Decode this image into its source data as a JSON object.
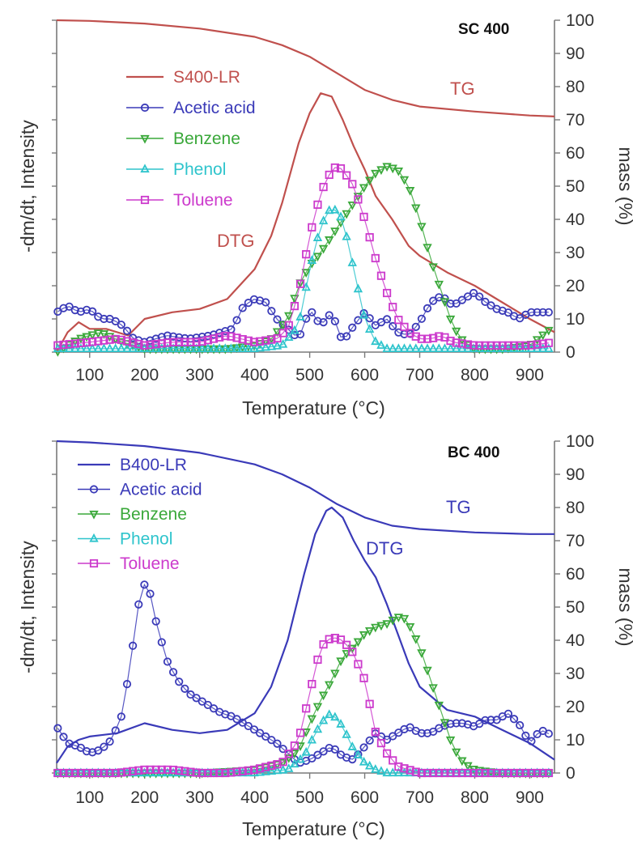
{
  "chart_data": [
    {
      "type": "line",
      "panel_label": "SC 400",
      "xlabel": "Temperature (°C)",
      "ylabel_left": "-dm/dt, Intensity",
      "ylabel_right": "mass (%)",
      "xlim": [
        40,
        945
      ],
      "ylim": [
        0,
        100
      ],
      "x_ticks": [
        100,
        200,
        300,
        400,
        500,
        600,
        700,
        800,
        900
      ],
      "y_ticks": [
        0,
        10,
        20,
        30,
        40,
        50,
        60,
        70,
        80,
        90,
        100
      ],
      "grid": false,
      "legend_position": "top-left",
      "annotations": {
        "tg": "TG",
        "dtg": "DTG"
      },
      "series": [
        {
          "name": "S400-LR",
          "kind": "TG",
          "color": "#c0504d",
          "marker": "none",
          "x": [
            40,
            100,
            200,
            300,
            400,
            450,
            500,
            550,
            600,
            650,
            700,
            800,
            900,
            945
          ],
          "y": [
            100,
            99.8,
            99,
            97.5,
            95,
            92.5,
            89,
            84,
            79,
            76,
            74,
            72.5,
            71.3,
            71
          ]
        },
        {
          "name": "S400-LR",
          "kind": "DTG",
          "color": "#c0504d",
          "marker": "none",
          "x": [
            40,
            60,
            80,
            100,
            130,
            170,
            200,
            250,
            300,
            350,
            400,
            430,
            450,
            480,
            500,
            520,
            540,
            560,
            580,
            600,
            620,
            650,
            680,
            700,
            750,
            800,
            850,
            900,
            945
          ],
          "y": [
            0,
            6,
            9,
            7,
            7,
            5,
            10,
            12,
            13,
            16,
            25,
            35,
            45,
            63,
            72,
            78,
            77,
            70,
            62,
            55,
            47,
            40,
            32,
            29,
            24,
            20,
            15,
            10,
            6
          ]
        },
        {
          "name": "Acetic acid",
          "color": "#3a3ab8",
          "marker": "circle",
          "x": [
            40,
            60,
            80,
            100,
            120,
            140,
            160,
            180,
            200,
            240,
            280,
            320,
            360,
            380,
            400,
            420,
            440,
            460,
            480,
            500,
            520,
            540,
            560,
            580,
            600,
            620,
            640,
            660,
            680,
            700,
            720,
            740,
            760,
            780,
            800,
            820,
            840,
            860,
            880,
            900,
            920,
            945
          ],
          "y": [
            12,
            14,
            12,
            13,
            10,
            10,
            8,
            4,
            3,
            5,
            4,
            5,
            7,
            14,
            16,
            15,
            10,
            7,
            4,
            13,
            8,
            12,
            3,
            8,
            12,
            8,
            10,
            6,
            5,
            9,
            15,
            17,
            14,
            16,
            18,
            15,
            13,
            12,
            10,
            12,
            12,
            12
          ]
        },
        {
          "name": "Benzene",
          "color": "#3aa83a",
          "marker": "triangle-down",
          "x": [
            40,
            80,
            120,
            160,
            200,
            250,
            300,
            350,
            400,
            430,
            460,
            480,
            500,
            520,
            540,
            560,
            580,
            600,
            620,
            640,
            660,
            680,
            700,
            720,
            740,
            760,
            780,
            800,
            850,
            900,
            945
          ],
          "y": [
            0,
            4,
            6,
            3,
            1,
            1,
            1,
            1,
            2,
            4,
            10,
            20,
            26,
            30,
            35,
            40,
            45,
            50,
            54,
            56,
            55,
            50,
            40,
            28,
            18,
            8,
            3,
            1,
            1,
            2,
            8
          ]
        },
        {
          "name": "Phenol",
          "color": "#2ec4cc",
          "marker": "triangle-up",
          "x": [
            40,
            100,
            200,
            300,
            400,
            450,
            480,
            500,
            520,
            540,
            560,
            580,
            600,
            620,
            640,
            660,
            700,
            800,
            900,
            945
          ],
          "y": [
            1,
            1,
            1,
            1,
            1,
            2,
            8,
            25,
            38,
            44,
            40,
            25,
            10,
            3,
            1,
            1,
            1,
            1,
            1,
            1
          ]
        },
        {
          "name": "Toluene",
          "color": "#cc3acc",
          "marker": "square",
          "x": [
            40,
            100,
            150,
            200,
            250,
            300,
            350,
            400,
            440,
            460,
            480,
            500,
            520,
            540,
            550,
            560,
            580,
            600,
            620,
            640,
            660,
            680,
            700,
            720,
            740,
            760,
            800,
            850,
            900,
            945
          ],
          "y": [
            2,
            3,
            4,
            2,
            3,
            3,
            5,
            3,
            4,
            7,
            18,
            35,
            48,
            55,
            56,
            55,
            50,
            40,
            28,
            18,
            10,
            6,
            4,
            4,
            5,
            3,
            2,
            2,
            2,
            3
          ]
        }
      ]
    },
    {
      "type": "line",
      "panel_label": "BC 400",
      "xlabel": "Temperature (°C)",
      "ylabel_left": "-dm/dt, Intensity",
      "ylabel_right": "mass (%)",
      "xlim": [
        40,
        945
      ],
      "ylim": [
        0,
        100
      ],
      "x_ticks": [
        100,
        200,
        300,
        400,
        500,
        600,
        700,
        800,
        900
      ],
      "y_ticks": [
        0,
        10,
        20,
        30,
        40,
        50,
        60,
        70,
        80,
        90,
        100
      ],
      "grid": false,
      "legend_position": "top-left",
      "annotations": {
        "tg": "TG",
        "dtg": "DTG"
      },
      "series": [
        {
          "name": "B400-LR",
          "kind": "TG",
          "color": "#3a3ab8",
          "marker": "none",
          "x": [
            40,
            100,
            200,
            300,
            400,
            450,
            500,
            550,
            600,
            650,
            700,
            800,
            900,
            945
          ],
          "y": [
            100,
            99.6,
            98.5,
            96.5,
            93,
            90,
            86,
            81,
            77,
            74.5,
            73.5,
            72.5,
            72,
            72
          ]
        },
        {
          "name": "B400-LR",
          "kind": "DTG",
          "color": "#3a3ab8",
          "marker": "none",
          "x": [
            40,
            60,
            80,
            100,
            150,
            200,
            250,
            300,
            350,
            400,
            430,
            460,
            490,
            510,
            530,
            540,
            560,
            580,
            600,
            620,
            640,
            660,
            680,
            700,
            750,
            800,
            850,
            900,
            945
          ],
          "y": [
            3,
            8,
            10,
            11,
            12,
            15,
            13,
            12,
            13,
            18,
            26,
            40,
            60,
            72,
            79,
            80,
            77,
            70,
            64,
            59,
            51,
            42,
            33,
            26,
            19,
            17,
            13,
            9,
            4
          ]
        },
        {
          "name": "Acetic acid",
          "color": "#3a3ab8",
          "marker": "circle",
          "x": [
            40,
            60,
            80,
            100,
            120,
            140,
            160,
            180,
            190,
            200,
            210,
            220,
            240,
            260,
            280,
            300,
            320,
            340,
            360,
            380,
            400,
            420,
            440,
            460,
            480,
            500,
            520,
            540,
            560,
            580,
            600,
            620,
            640,
            660,
            680,
            700,
            720,
            740,
            760,
            780,
            800,
            820,
            840,
            860,
            880,
            900,
            920,
            945
          ],
          "y": [
            14,
            9,
            8,
            6,
            7,
            10,
            18,
            40,
            52,
            57,
            54,
            46,
            34,
            28,
            24,
            22,
            20,
            18,
            17,
            15,
            13,
            11,
            9,
            6,
            3,
            4,
            6,
            8,
            5,
            4,
            8,
            12,
            10,
            12,
            14,
            12,
            12,
            14,
            15,
            15,
            14,
            16,
            16,
            18,
            15,
            9,
            13,
            11
          ]
        },
        {
          "name": "Benzene",
          "color": "#3aa83a",
          "marker": "triangle-down",
          "x": [
            40,
            100,
            200,
            300,
            400,
            450,
            480,
            500,
            520,
            540,
            560,
            580,
            600,
            620,
            640,
            660,
            670,
            680,
            700,
            720,
            740,
            760,
            780,
            800,
            850,
            900,
            945
          ],
          "y": [
            0,
            0,
            0,
            0,
            1,
            3,
            7,
            15,
            22,
            28,
            35,
            38,
            42,
            44,
            45,
            47,
            47,
            45,
            38,
            28,
            18,
            8,
            3,
            1,
            0,
            0,
            0
          ]
        },
        {
          "name": "Phenol",
          "color": "#2ec4cc",
          "marker": "triangle-up",
          "x": [
            40,
            100,
            200,
            300,
            400,
            460,
            490,
            510,
            530,
            540,
            560,
            580,
            600,
            620,
            640,
            700,
            800,
            900,
            945
          ],
          "y": [
            0,
            0,
            0,
            0,
            0,
            1,
            5,
            12,
            17,
            18,
            14,
            7,
            3,
            1,
            0,
            0,
            0,
            0,
            0
          ]
        },
        {
          "name": "Toluene",
          "color": "#cc3acc",
          "marker": "square",
          "x": [
            40,
            100,
            150,
            200,
            250,
            300,
            350,
            400,
            450,
            480,
            500,
            520,
            540,
            560,
            580,
            600,
            610,
            620,
            640,
            660,
            700,
            800,
            900,
            945
          ],
          "y": [
            0,
            0,
            0,
            1,
            1,
            0,
            0,
            1,
            3,
            10,
            24,
            38,
            41,
            40,
            36,
            28,
            20,
            12,
            6,
            2,
            0,
            0,
            0,
            0
          ]
        }
      ]
    }
  ]
}
